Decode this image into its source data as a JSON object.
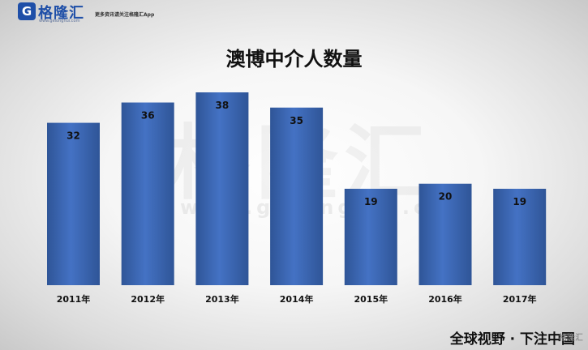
{
  "brand": {
    "mark": "G",
    "name": "格隆汇",
    "url": "www.gelonghui.com",
    "slogan": "更多资讯请关注格隆汇App"
  },
  "watermark": {
    "text": "格隆汇",
    "url": "www.gelonghui.com"
  },
  "footer": {
    "text": "全球视野 · 下注中国",
    "handle": "格隆汇"
  },
  "colors": {
    "bar": "#4472c4",
    "bar_dark": "#2f5597",
    "label": "#111111"
  },
  "chart_data": {
    "type": "bar",
    "title": "澳博中介人数量",
    "categories": [
      "2011年",
      "2012年",
      "2013年",
      "2014年",
      "2015年",
      "2016年",
      "2017年"
    ],
    "values": [
      32,
      36,
      38,
      35,
      19,
      20,
      19
    ],
    "xlabel": "",
    "ylabel": "",
    "ylim": [
      0,
      40
    ],
    "grid": false,
    "legend": "none",
    "data_labels": "inside-top"
  }
}
